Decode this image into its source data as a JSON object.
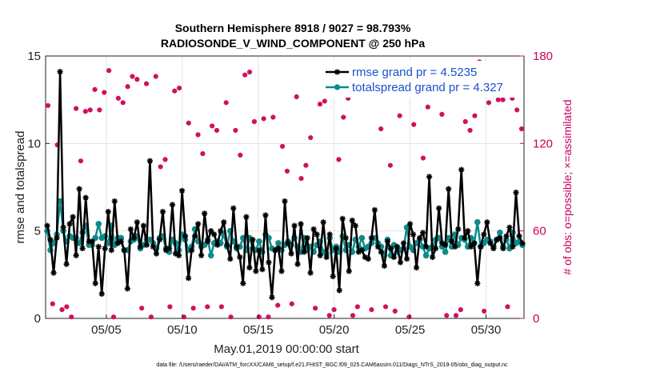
{
  "chart_data": {
    "type": "line",
    "title_line1": "Southern Hemisphere 8918 / 9027 = 98.793%",
    "title_line2": "RADIOSONDE_V_WIND_COMPONENT @ 250 hPa",
    "xlabel": "May.01,2019 00:00:00 start",
    "ylabel": "rmse and totalspread",
    "y2label": "# of obs: o=possible; ×=assimilated",
    "footnote": "data file: /Users/raeder/DAI/ATM_forcXX/CAM6_setup/f.e21.FHIST_BGC.f09_025.CAM6assim.011/Diags_NTrS_2019-05/obs_diag_output.nc",
    "xlim": [
      0,
      31.5
    ],
    "ylim": [
      0,
      15
    ],
    "y2lim": [
      0,
      180
    ],
    "x_ticks": [
      {
        "x": 4,
        "label": "05/05"
      },
      {
        "x": 9,
        "label": "05/10"
      },
      {
        "x": 14,
        "label": "05/15"
      },
      {
        "x": 19,
        "label": "05/20"
      },
      {
        "x": 24,
        "label": "05/25"
      },
      {
        "x": 29,
        "label": "05/30"
      }
    ],
    "y_ticks": [
      0,
      5,
      10,
      15
    ],
    "y2_ticks": [
      0,
      60,
      120,
      180
    ],
    "colors": {
      "rmse": "#000000",
      "spread": "#0e8a8a",
      "obs": "#d0105f",
      "legend_text": "#1a50d0"
    },
    "legend": {
      "position": "top-right",
      "entries": [
        "rmse grand pr = 4.5235",
        "totalspread grand pr = 4.327"
      ]
    },
    "series": [
      {
        "name": "rmse",
        "values": [
          5.3,
          4.5,
          2.6,
          4.6,
          14.1,
          5.2,
          3.1,
          5.4,
          5.8,
          3.6,
          7.4,
          4.0,
          6.9,
          4.4,
          4.4,
          2.0,
          4.1,
          1.4,
          4.0,
          6.1,
          3.9,
          6.7,
          4.3,
          4.4,
          3.9,
          1.7,
          5.1,
          4.6,
          5.5,
          4.1,
          5.3,
          4.2,
          9.0,
          4.1,
          3.7,
          4.5,
          6.1,
          3.9,
          4.0,
          6.5,
          3.7,
          3.6,
          7.3,
          4.7,
          2.3,
          3.9,
          4.7,
          5.4,
          3.6,
          6.0,
          4.4,
          5.0,
          4.8,
          4.2,
          5.0,
          5.5,
          4.2,
          3.4,
          6.3,
          4.1,
          3.5,
          2.0,
          5.8,
          2.9,
          4.5,
          2.7,
          3.9,
          2.8,
          5.9,
          3.2,
          1.2,
          3.9,
          4.0,
          2.7,
          6.7,
          4.3,
          3.7,
          5.3,
          3.1,
          5.4,
          3.8,
          4.6,
          2.6,
          5.1,
          4.8,
          3.6,
          5.5,
          3.5,
          4.8,
          2.4,
          4.0,
          1.6,
          5.7,
          4.6,
          2.7,
          5.6,
          5.3,
          3.8,
          3.9,
          3.5,
          3.4,
          4.6,
          6.2,
          4.1,
          3.8,
          3.0,
          4.4,
          4.0,
          3.5,
          4.1,
          3.2,
          4.3,
          3.4,
          5.4,
          4.8,
          2.9,
          4.6,
          4.9,
          4.1,
          8.1,
          3.5,
          4.0,
          6.3,
          4.3,
          4.2,
          7.4,
          4.4,
          4.1,
          5.1,
          8.5,
          4.6,
          5.0,
          4.1,
          4.3,
          2.0,
          4.1,
          4.8,
          5.5,
          4.3,
          4.0,
          4.5,
          4.6,
          4.0,
          4.7,
          5.2,
          4.1,
          7.2,
          4.7,
          4.3
        ]
      },
      {
        "name": "totalspread",
        "values": [
          5.0,
          3.9,
          4.3,
          4.8,
          6.7,
          5.0,
          4.4,
          4.7,
          4.6,
          4.6,
          4.3,
          4.9,
          5.3,
          4.2,
          4.2,
          4.6,
          5.4,
          4.6,
          4.7,
          4.3,
          5.3,
          4.2,
          4.6,
          4.6,
          3.9,
          3.9,
          4.4,
          4.5,
          4.7,
          4.0,
          4.2,
          4.5,
          4.5,
          4.3,
          4.0,
          4.6,
          4.7,
          4.0,
          3.8,
          4.5,
          4.3,
          3.9,
          4.8,
          4.5,
          3.9,
          4.1,
          5.1,
          4.4,
          4.1,
          4.2,
          4.5,
          3.6,
          4.3,
          4.4,
          4.3,
          4.8,
          4.1,
          5.0,
          4.4,
          4.0,
          4.1,
          4.6,
          3.9,
          4.6,
          4.0,
          3.9,
          4.4,
          3.8,
          4.8,
          4.6,
          4.0,
          3.9,
          4.3,
          3.9,
          4.2,
          4.4,
          4.2,
          4.6,
          4.1,
          3.8,
          4.6,
          3.9,
          4.1,
          3.8,
          4.2,
          4.4,
          3.8,
          3.7,
          4.6,
          3.9,
          4.1,
          3.8,
          4.7,
          3.9,
          4.2,
          3.8,
          4.5,
          4.1,
          4.6,
          4.0,
          4.1,
          4.3,
          4.6,
          4.3,
          4.1,
          3.6,
          4.5,
          3.6,
          4.2,
          3.8,
          3.9,
          4.0,
          5.2,
          4.1,
          3.9,
          4.3,
          4.5,
          4.1,
          3.6,
          4.0,
          4.1,
          4.5,
          4.6,
          4.1,
          3.8,
          4.6,
          4.1,
          4.8,
          4.2,
          4.6,
          4.5,
          4.1,
          4.6,
          4.3,
          5.5,
          4.1,
          4.3,
          4.5,
          4.4,
          4.1,
          4.5,
          4.9,
          4.1,
          4.5,
          4.0,
          4.9,
          4.3,
          4.4,
          4.2
        ]
      },
      {
        "name": "obs_possible",
        "values": [
          146,
          10,
          119,
          6,
          8,
          1,
          144,
          108,
          142,
          143,
          157,
          143,
          155,
          170,
          1,
          151,
          148,
          159,
          166,
          164,
          7,
          161,
          1,
          166,
          104,
          109,
          8,
          156,
          158,
          1,
          134,
          7,
          126,
          113,
          8,
          132,
          129,
          8,
          148,
          1,
          129,
          112,
          167,
          169,
          135,
          1,
          137,
          1,
          138,
          9,
          118,
          101,
          10,
          152,
          96,
          105,
          124,
          7,
          147,
          149,
          2,
          6,
          109,
          138,
          151,
          2,
          8,
          166,
          168,
          6,
          164,
          130,
          8,
          105,
          5,
          139,
          169,
          1,
          133,
          154,
          110,
          145,
          159,
          160,
          140,
          2,
          157,
          2,
          6,
          135,
          129,
          139,
          176,
          5,
          148,
          153,
          150,
          150,
          8,
          151,
          143,
          130
        ]
      },
      {
        "name": "obs_assimilated",
        "values": [
          146,
          10,
          119,
          6,
          8,
          1,
          144,
          108,
          142,
          143,
          157,
          143,
          155,
          170,
          1,
          151,
          148,
          159,
          166,
          164,
          7,
          161,
          1,
          166,
          104,
          109,
          8,
          156,
          158,
          1,
          134,
          7,
          126,
          113,
          8,
          132,
          129,
          8,
          148,
          1,
          129,
          112,
          167,
          169,
          135,
          1,
          137,
          1,
          138,
          9,
          118,
          101,
          10,
          152,
          96,
          105,
          124,
          7,
          147,
          149,
          2,
          6,
          109,
          138,
          151,
          2,
          8,
          166,
          168,
          6,
          164,
          130,
          8,
          105,
          5,
          139,
          169,
          1,
          133,
          154,
          110,
          145,
          159,
          160,
          140,
          2,
          157,
          2,
          6,
          135,
          129,
          139,
          176,
          5,
          148,
          153,
          150,
          150,
          8,
          151,
          143,
          130
        ]
      }
    ]
  }
}
